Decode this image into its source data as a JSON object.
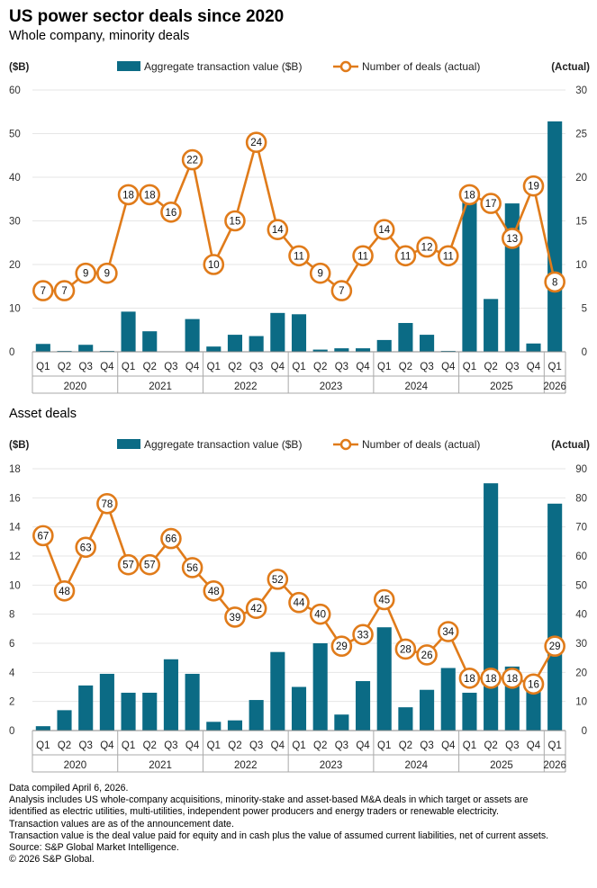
{
  "title": "US power sector deals since 2020",
  "colors": {
    "bar": "#0b6b85",
    "line": "#e07b1a",
    "grid": "#e6e6e6",
    "text": "#333333"
  },
  "quarters": [
    "Q1",
    "Q2",
    "Q3",
    "Q4",
    "Q1",
    "Q2",
    "Q3",
    "Q4",
    "Q1",
    "Q2",
    "Q3",
    "Q4",
    "Q1",
    "Q2",
    "Q3",
    "Q4",
    "Q1",
    "Q2",
    "Q3",
    "Q4",
    "Q1",
    "Q2",
    "Q3",
    "Q4",
    "Q1"
  ],
  "years": [
    "2020",
    "2021",
    "2022",
    "2023",
    "2024",
    "2025",
    "2026"
  ],
  "chart_data": [
    {
      "type": "bar",
      "subtitle": "Whole company, minority deals",
      "legend": {
        "bars": "Aggregate transaction value ($B)",
        "line": "Number of deals (actual)",
        "position": "top"
      },
      "ylabel_left": "($B)",
      "ylabel_right": "(Actual)",
      "ylim_left": [
        0,
        60
      ],
      "yticks_left": [
        0,
        10,
        20,
        30,
        40,
        50,
        60
      ],
      "ylim_right": [
        0,
        30
      ],
      "yticks_right": [
        0,
        5,
        10,
        15,
        20,
        25,
        30
      ],
      "categories": [
        "Q1 2020",
        "Q2 2020",
        "Q3 2020",
        "Q4 2020",
        "Q1 2021",
        "Q2 2021",
        "Q3 2021",
        "Q4 2021",
        "Q1 2022",
        "Q2 2022",
        "Q3 2022",
        "Q4 2022",
        "Q1 2023",
        "Q2 2023",
        "Q3 2023",
        "Q4 2023",
        "Q1 2024",
        "Q2 2024",
        "Q3 2024",
        "Q4 2024",
        "Q1 2025",
        "Q2 2025",
        "Q3 2025",
        "Q4 2025",
        "Q1 2026"
      ],
      "series": [
        {
          "name": "Aggregate transaction value ($B)",
          "type": "bar",
          "values": [
            1.8,
            0.2,
            1.6,
            0.2,
            9.2,
            4.7,
            0.1,
            7.5,
            1.2,
            3.9,
            3.6,
            8.9,
            8.6,
            0.5,
            0.8,
            0.8,
            2.7,
            6.6,
            3.9,
            0.2,
            35.0,
            12.1,
            34.0,
            1.9,
            52.8
          ]
        },
        {
          "name": "Number of deals (actual)",
          "type": "line",
          "values": [
            7,
            7,
            9,
            9,
            18,
            18,
            16,
            22,
            10,
            15,
            24,
            14,
            11,
            9,
            7,
            11,
            14,
            11,
            12,
            11,
            18,
            17,
            13,
            19,
            8
          ]
        }
      ],
      "grid": true
    },
    {
      "type": "bar",
      "subtitle": "Asset deals",
      "legend": {
        "bars": "Aggregate transaction value ($B)",
        "line": "Number of deals (actual)",
        "position": "top"
      },
      "ylabel_left": "($B)",
      "ylabel_right": "(Actual)",
      "ylim_left": [
        0,
        18
      ],
      "yticks_left": [
        0,
        2,
        4,
        6,
        8,
        10,
        12,
        14,
        16,
        18
      ],
      "ylim_right": [
        0,
        90
      ],
      "yticks_right": [
        0,
        10,
        20,
        30,
        40,
        50,
        60,
        70,
        80,
        90
      ],
      "categories": [
        "Q1 2020",
        "Q2 2020",
        "Q3 2020",
        "Q4 2020",
        "Q1 2021",
        "Q2 2021",
        "Q3 2021",
        "Q4 2021",
        "Q1 2022",
        "Q2 2022",
        "Q3 2022",
        "Q4 2022",
        "Q1 2023",
        "Q2 2023",
        "Q3 2023",
        "Q4 2023",
        "Q1 2024",
        "Q2 2024",
        "Q3 2024",
        "Q4 2024",
        "Q1 2025",
        "Q2 2025",
        "Q3 2025",
        "Q4 2025",
        "Q1 2026"
      ],
      "series": [
        {
          "name": "Aggregate transaction value ($B)",
          "type": "bar",
          "values": [
            0.3,
            1.4,
            3.1,
            3.9,
            2.6,
            2.6,
            4.9,
            3.9,
            0.6,
            0.7,
            2.1,
            5.4,
            3.0,
            6.0,
            1.1,
            3.4,
            7.1,
            1.6,
            2.8,
            4.3,
            2.6,
            17.0,
            4.4,
            3.1,
            15.6
          ]
        },
        {
          "name": "Number of deals (actual)",
          "type": "line",
          "values": [
            67,
            48,
            63,
            78,
            57,
            57,
            66,
            56,
            48,
            39,
            42,
            52,
            44,
            40,
            29,
            33,
            45,
            28,
            26,
            34,
            18,
            18,
            18,
            16,
            29
          ]
        }
      ],
      "grid": true
    }
  ],
  "footnotes": [
    "Data compiled April 6, 2026.",
    "Analysis includes US whole-company acquisitions, minority-stake and asset-based M&A deals in which target or assets are",
    "identified as electric utilities, multi-utilities, independent power producers and energy traders or renewable electricity.",
    "Transaction values are as of the announcement date.",
    "Transaction value is the deal value paid for equity and in cash plus the value of assumed current liabilities, net of current assets.",
    "Source: S&P Global Market Intelligence.",
    "© 2026 S&P Global."
  ]
}
